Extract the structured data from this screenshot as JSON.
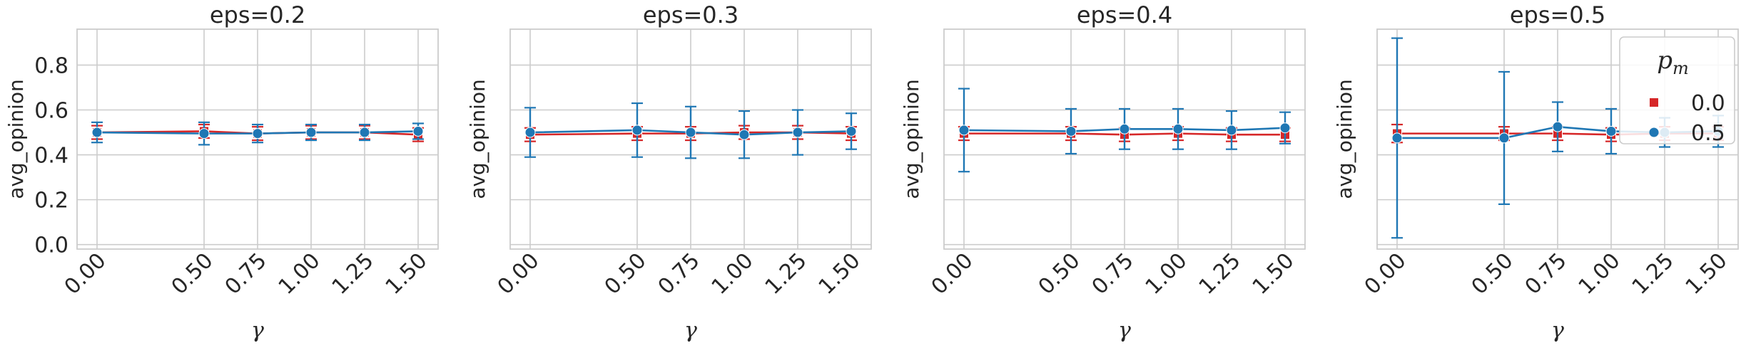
{
  "chart_data": [
    {
      "type": "line",
      "title": "eps=0.2",
      "xlabel": "γ",
      "ylabel": "avg_opinion",
      "x": [
        0.0,
        0.5,
        0.75,
        1.0,
        1.25,
        1.5
      ],
      "x_tick_labels": [
        "0.00",
        "0.50",
        "0.75",
        "1.00",
        "1.25",
        "1.50"
      ],
      "y_ticks": [
        0.0,
        0.2,
        0.4,
        0.6,
        0.8
      ],
      "y_tick_labels": [
        "0.0",
        "0.2",
        "0.4",
        "0.6",
        "0.8"
      ],
      "ylim": [
        -0.02,
        0.96
      ],
      "grid": true,
      "series": [
        {
          "name": "0.0",
          "marker": "square",
          "color": "#d62728",
          "values": [
            0.5,
            0.505,
            0.495,
            0.5,
            0.5,
            0.49
          ],
          "err": [
            0.03,
            0.03,
            0.03,
            0.03,
            0.03,
            0.03
          ]
        },
        {
          "name": "0.5",
          "marker": "circle",
          "color": "#1f77b4",
          "values": [
            0.5,
            0.495,
            0.495,
            0.5,
            0.5,
            0.505
          ],
          "err": [
            0.045,
            0.05,
            0.04,
            0.035,
            0.035,
            0.035
          ]
        }
      ]
    },
    {
      "type": "line",
      "title": "eps=0.3",
      "xlabel": "γ",
      "ylabel": "avg_opinion",
      "x": [
        0.0,
        0.5,
        0.75,
        1.0,
        1.25,
        1.5
      ],
      "x_tick_labels": [
        "0.00",
        "0.50",
        "0.75",
        "1.00",
        "1.25",
        "1.50"
      ],
      "ylim": [
        -0.02,
        0.96
      ],
      "grid": true,
      "series": [
        {
          "name": "0.0",
          "marker": "square",
          "color": "#d62728",
          "values": [
            0.49,
            0.495,
            0.495,
            0.5,
            0.5,
            0.495
          ],
          "err": [
            0.03,
            0.03,
            0.03,
            0.03,
            0.03,
            0.03
          ]
        },
        {
          "name": "0.5",
          "marker": "circle",
          "color": "#1f77b4",
          "values": [
            0.5,
            0.51,
            0.5,
            0.49,
            0.5,
            0.505
          ],
          "err": [
            0.11,
            0.12,
            0.115,
            0.105,
            0.1,
            0.08
          ]
        }
      ]
    },
    {
      "type": "line",
      "title": "eps=0.4",
      "xlabel": "γ",
      "ylabel": "avg_opinion",
      "x": [
        0.0,
        0.5,
        0.75,
        1.0,
        1.25,
        1.5
      ],
      "x_tick_labels": [
        "0.00",
        "0.50",
        "0.75",
        "1.00",
        "1.25",
        "1.50"
      ],
      "ylim": [
        -0.02,
        0.96
      ],
      "grid": true,
      "series": [
        {
          "name": "0.0",
          "marker": "square",
          "color": "#d62728",
          "values": [
            0.495,
            0.495,
            0.49,
            0.495,
            0.49,
            0.49
          ],
          "err": [
            0.03,
            0.03,
            0.03,
            0.03,
            0.03,
            0.03
          ]
        },
        {
          "name": "0.5",
          "marker": "circle",
          "color": "#1f77b4",
          "values": [
            0.51,
            0.505,
            0.515,
            0.515,
            0.51,
            0.52
          ],
          "err": [
            0.185,
            0.1,
            0.09,
            0.09,
            0.085,
            0.07
          ]
        }
      ]
    },
    {
      "type": "line",
      "title": "eps=0.5",
      "xlabel": "γ",
      "ylabel": "avg_opinion",
      "x": [
        0.0,
        0.5,
        0.75,
        1.0,
        1.25,
        1.5
      ],
      "x_tick_labels": [
        "0.00",
        "0.50",
        "0.75",
        "1.00",
        "1.25",
        "1.50"
      ],
      "ylim": [
        -0.02,
        0.96
      ],
      "grid": true,
      "legend": {
        "title": "p_m",
        "title_main": "p",
        "title_sub": "m",
        "placement": "top-right"
      },
      "series": [
        {
          "name": "0.0",
          "marker": "square",
          "color": "#d62728",
          "values": [
            0.495,
            0.495,
            0.495,
            0.49,
            0.495,
            0.495
          ],
          "err": [
            0.04,
            0.03,
            0.03,
            0.03,
            0.03,
            0.03
          ]
        },
        {
          "name": "0.5",
          "marker": "circle",
          "color": "#1f77b4",
          "values": [
            0.475,
            0.475,
            0.525,
            0.505,
            0.5,
            0.505
          ],
          "err": [
            0.445,
            0.295,
            0.11,
            0.1,
            0.065,
            0.07
          ]
        }
      ]
    }
  ]
}
